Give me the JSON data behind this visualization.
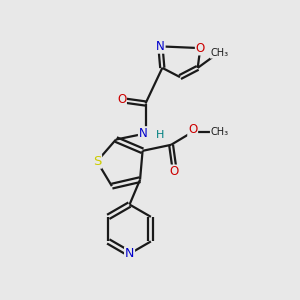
{
  "background_color": "#e8e8e8",
  "line_color": "#1a1a1a",
  "bond_width": 1.6,
  "atom_colors": {
    "N": "#0000cc",
    "O": "#cc0000",
    "S": "#cccc00",
    "H": "#008080",
    "C": "#1a1a1a"
  },
  "font_size_atom": 8.5,
  "font_size_small": 7.5,
  "figsize": [
    3.0,
    3.0
  ],
  "dpi": 100,
  "xlim": [
    0,
    10
  ],
  "ylim": [
    0,
    10
  ]
}
